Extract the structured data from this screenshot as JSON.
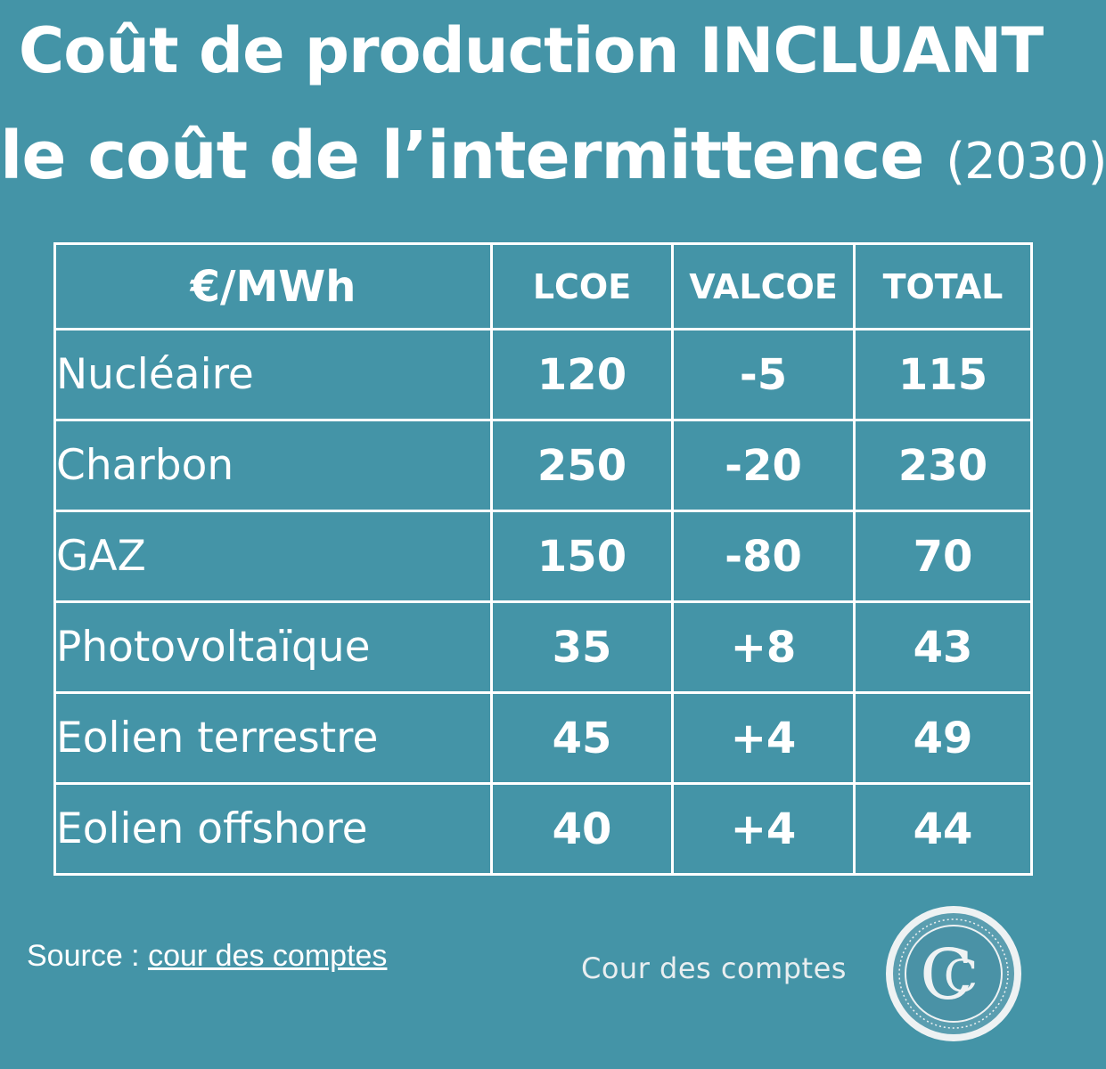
{
  "title": {
    "line1": "Coût de production INCLUANT",
    "line2": "le coût de l’intermittence",
    "year": "(2030)"
  },
  "table": {
    "unit_header": "€/MWh",
    "columns": [
      "LCOE",
      "VALCOE",
      "TOTAL"
    ],
    "rows": [
      {
        "label": "Nucléaire",
        "lcoe": "120",
        "valcoe": "-5",
        "total": "115"
      },
      {
        "label": "Charbon",
        "lcoe": "250",
        "valcoe": "-20",
        "total": "230"
      },
      {
        "label": "GAZ",
        "lcoe": "150",
        "valcoe": "-80",
        "total": "70"
      },
      {
        "label": "Photovoltaïque",
        "lcoe": "35",
        "valcoe": "+8",
        "total": "43"
      },
      {
        "label": "Eolien terrestre",
        "lcoe": "45",
        "valcoe": "+4",
        "total": "49"
      },
      {
        "label": "Eolien offshore",
        "lcoe": "40",
        "valcoe": "+4",
        "total": "44"
      }
    ]
  },
  "chart_data": {
    "type": "table",
    "title": "Coût de production INCLUANT le coût de l’intermittence (2030)",
    "unit": "€/MWh",
    "columns": [
      "LCOE",
      "VALCOE",
      "TOTAL"
    ],
    "categories": [
      "Nucléaire",
      "Charbon",
      "GAZ",
      "Photovoltaïque",
      "Eolien terrestre",
      "Eolien offshore"
    ],
    "series": [
      {
        "name": "LCOE",
        "values": [
          120,
          250,
          150,
          35,
          45,
          40
        ]
      },
      {
        "name": "VALCOE",
        "values": [
          -5,
          -20,
          -80,
          8,
          4,
          4
        ]
      },
      {
        "name": "TOTAL",
        "values": [
          115,
          230,
          70,
          43,
          49,
          44
        ]
      }
    ]
  },
  "footer": {
    "source_label": "Source : ",
    "source_link": "cour des comptes",
    "brand_name": "Cour des comptes",
    "logo_letters": "CC"
  },
  "colors": {
    "background": "#4494a7",
    "text": "#ffffff"
  }
}
